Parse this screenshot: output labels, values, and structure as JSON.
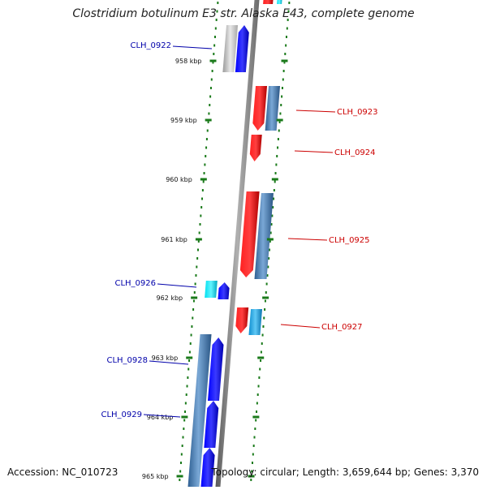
{
  "title": "Clostridium botulinum E3 str. Alaska E43, complete genome",
  "footer": {
    "accession": "Accession: NC_010723",
    "stats": "Topology: circular; Length: 3,659,644 bp; Genes: 3,370"
  },
  "colors": {
    "forward_cds": "#0000ee",
    "reverse_cds": "#ee0000",
    "steel_gene": "#4a7fb5",
    "cyan_gene": "#00d8e8",
    "light_blue_gene": "#2aaae0",
    "gray_gene": "#c0c0c0",
    "backbone": "#808080",
    "tick": "#1a7a1a",
    "label_forward": "#0000aa",
    "label_reverse": "#cc0000"
  },
  "ticks": [
    {
      "label": "958 kbp"
    },
    {
      "label": "959 kbp"
    },
    {
      "label": "960 kbp"
    },
    {
      "label": "961 kbp"
    },
    {
      "label": "962 kbp"
    },
    {
      "label": "963 kbp"
    },
    {
      "label": "964 kbp"
    },
    {
      "label": "965 kbp"
    }
  ],
  "gene_labels": [
    {
      "label": "CLH_0922",
      "strand": "forward"
    },
    {
      "label": "CLH_0923",
      "strand": "reverse"
    },
    {
      "label": "CLH_0924",
      "strand": "reverse"
    },
    {
      "label": "CLH_0925",
      "strand": "reverse"
    },
    {
      "label": "CLH_0926",
      "strand": "forward"
    },
    {
      "label": "CLH_0927",
      "strand": "reverse"
    },
    {
      "label": "CLH_0928",
      "strand": "forward"
    },
    {
      "label": "CLH_0929",
      "strand": "forward"
    }
  ]
}
